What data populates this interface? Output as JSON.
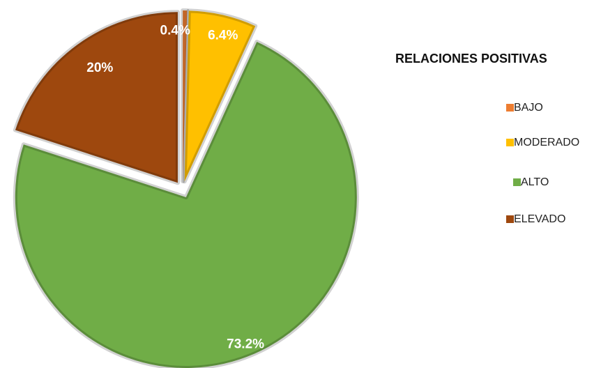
{
  "chart_data": {
    "type": "pie",
    "title": "RELACIONES POSITIVAS",
    "categories": [
      "BAJO",
      "MODERADO",
      "ALTO",
      "ELEVADO"
    ],
    "values": [
      0.4,
      6.4,
      73.2,
      20
    ],
    "value_labels": [
      "0.4%",
      "6.4%",
      "73.2%",
      "20%"
    ],
    "colors": [
      "#ed7d31",
      "#ffc000",
      "#70ad47",
      "#9e480e"
    ]
  }
}
